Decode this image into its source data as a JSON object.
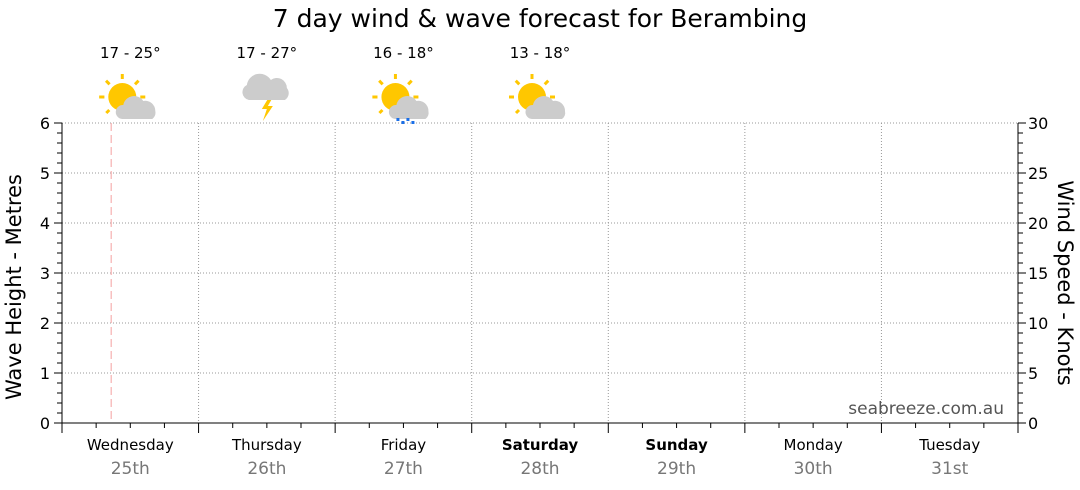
{
  "chart_data": {
    "type": "line",
    "title": "7 day wind & wave forecast for Berambing",
    "ylabel_left": "Wave Height - Metres",
    "ylabel_right": "Wind Speed - Knots",
    "ylim_left": [
      0,
      6
    ],
    "ylim_right": [
      0,
      30
    ],
    "yticks_left": [
      "0",
      "1",
      "2",
      "3",
      "4",
      "5",
      "6"
    ],
    "yticks_right": [
      "0",
      "5",
      "10",
      "15",
      "20",
      "25",
      "30"
    ],
    "grid": true,
    "days": [
      {
        "name": "Wednesday",
        "date": "25th",
        "bold": false
      },
      {
        "name": "Thursday",
        "date": "26th",
        "bold": false
      },
      {
        "name": "Friday",
        "date": "27th",
        "bold": false
      },
      {
        "name": "Saturday",
        "date": "28th",
        "bold": true
      },
      {
        "name": "Sunday",
        "date": "29th",
        "bold": true
      },
      {
        "name": "Monday",
        "date": "30th",
        "bold": false
      },
      {
        "name": "Tuesday",
        "date": "31st",
        "bold": false
      }
    ],
    "forecast": [
      {
        "temp": "17 - 25°",
        "icon": "partly-cloudy-icon"
      },
      {
        "temp": "17 - 27°",
        "icon": "storm-icon"
      },
      {
        "temp": "16 - 18°",
        "icon": "showers-icon"
      },
      {
        "temp": "13 - 18°",
        "icon": "partly-cloudy-icon"
      }
    ],
    "now_marker_day_fraction": 0.36,
    "series": [],
    "watermark": "seabreeze.com.au",
    "colors": {
      "sun": "#ffc700",
      "cloud": "#cccccc",
      "rain": "#1a6fe8",
      "now_marker": "#f4a0a0",
      "grid": "#999999",
      "date_text": "#777777"
    }
  }
}
